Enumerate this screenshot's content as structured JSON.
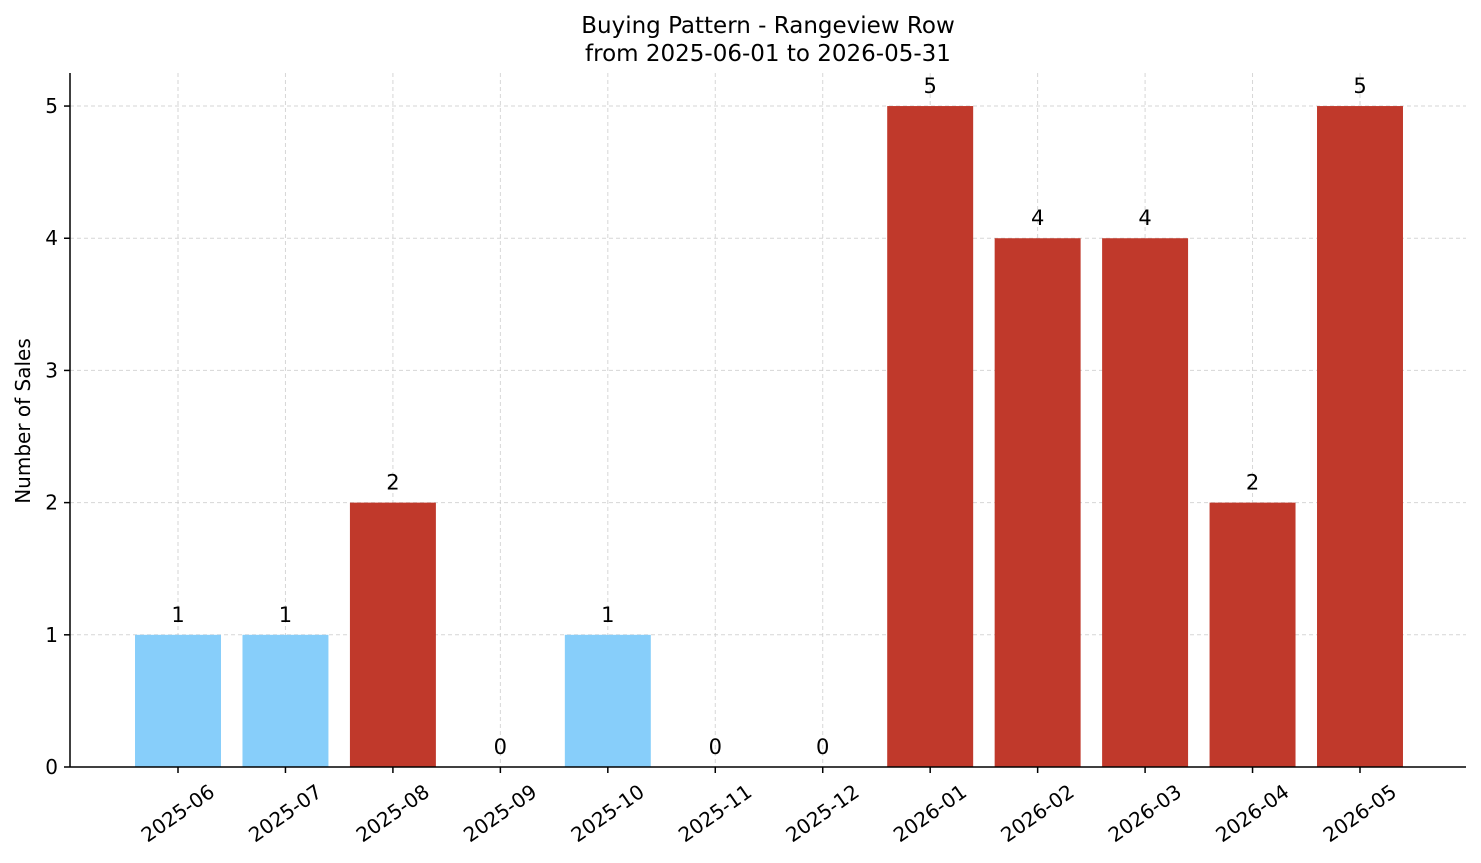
{
  "chart_data": {
    "type": "bar",
    "title": "Buying Pattern - Rangeview Row",
    "subtitle": "from 2025-06-01 to 2026-05-31",
    "xlabel": "",
    "ylabel": "Number of Sales",
    "categories": [
      "2025-06",
      "2025-07",
      "2025-08",
      "2025-09",
      "2025-10",
      "2025-11",
      "2025-12",
      "2026-01",
      "2026-02",
      "2026-03",
      "2026-04",
      "2026-05"
    ],
    "values": [
      1,
      1,
      2,
      0,
      1,
      0,
      0,
      5,
      4,
      4,
      2,
      5
    ],
    "bar_colors": [
      "#87CEFA",
      "#87CEFA",
      "#C0392B",
      "#87CEFA",
      "#87CEFA",
      "#87CEFA",
      "#87CEFA",
      "#C0392B",
      "#C0392B",
      "#C0392B",
      "#C0392B",
      "#C0392B"
    ],
    "data_labels": [
      "1",
      "1",
      "2",
      "0",
      "1",
      "0",
      "0",
      "5",
      "4",
      "4",
      "2",
      "5"
    ],
    "yticks": [
      0,
      1,
      2,
      3,
      4,
      5
    ],
    "ylim": [
      0,
      5.25
    ],
    "grid": true,
    "legend": "none"
  }
}
